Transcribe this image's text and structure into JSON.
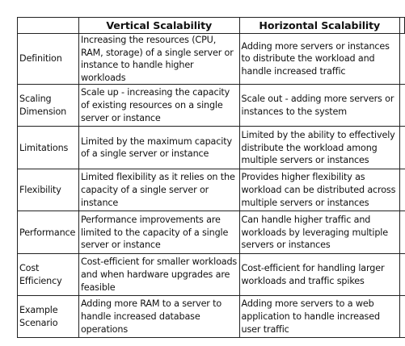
{
  "table": {
    "headers": [
      "",
      "Vertical Scalability",
      "Horizontal Scalability"
    ],
    "rows": [
      {
        "label": "Definition",
        "vertical": "Increasing the resources (CPU, RAM, storage) of a single server or instance to handle higher workloads",
        "horizontal": "Adding more servers or instances to distribute the workload and handle increased traffic"
      },
      {
        "label": "Scaling Dimension",
        "vertical": "Scale up - increasing the capacity of existing resources on a single server or instance",
        "horizontal": "Scale out - adding more servers or instances to the system"
      },
      {
        "label": "Limitations",
        "vertical": "Limited by the maximum capacity of a single server or instance",
        "horizontal": "Limited by the ability to effectively distribute the workload among multiple servers or instances"
      },
      {
        "label": "Flexibility",
        "vertical": "Limited flexibility as it relies on the capacity of a single server or instance",
        "horizontal": "Provides higher flexibility as workload can be distributed across multiple servers or instances"
      },
      {
        "label": "Performance",
        "vertical": "Performance improvements are limited to the capacity of a single server or instance",
        "horizontal": "Can handle higher traffic and workloads by leveraging multiple servers or instances"
      },
      {
        "label": "Cost Efficiency",
        "vertical": "Cost-efficient for smaller workloads and when hardware upgrades are feasible",
        "horizontal": "Cost-efficient for handling larger workloads and traffic spikes"
      },
      {
        "label": "Example Scenario",
        "vertical": "Adding more RAM to a server to handle increased database operations",
        "horizontal": "Adding more servers to a web application to handle increased user traffic"
      }
    ]
  }
}
